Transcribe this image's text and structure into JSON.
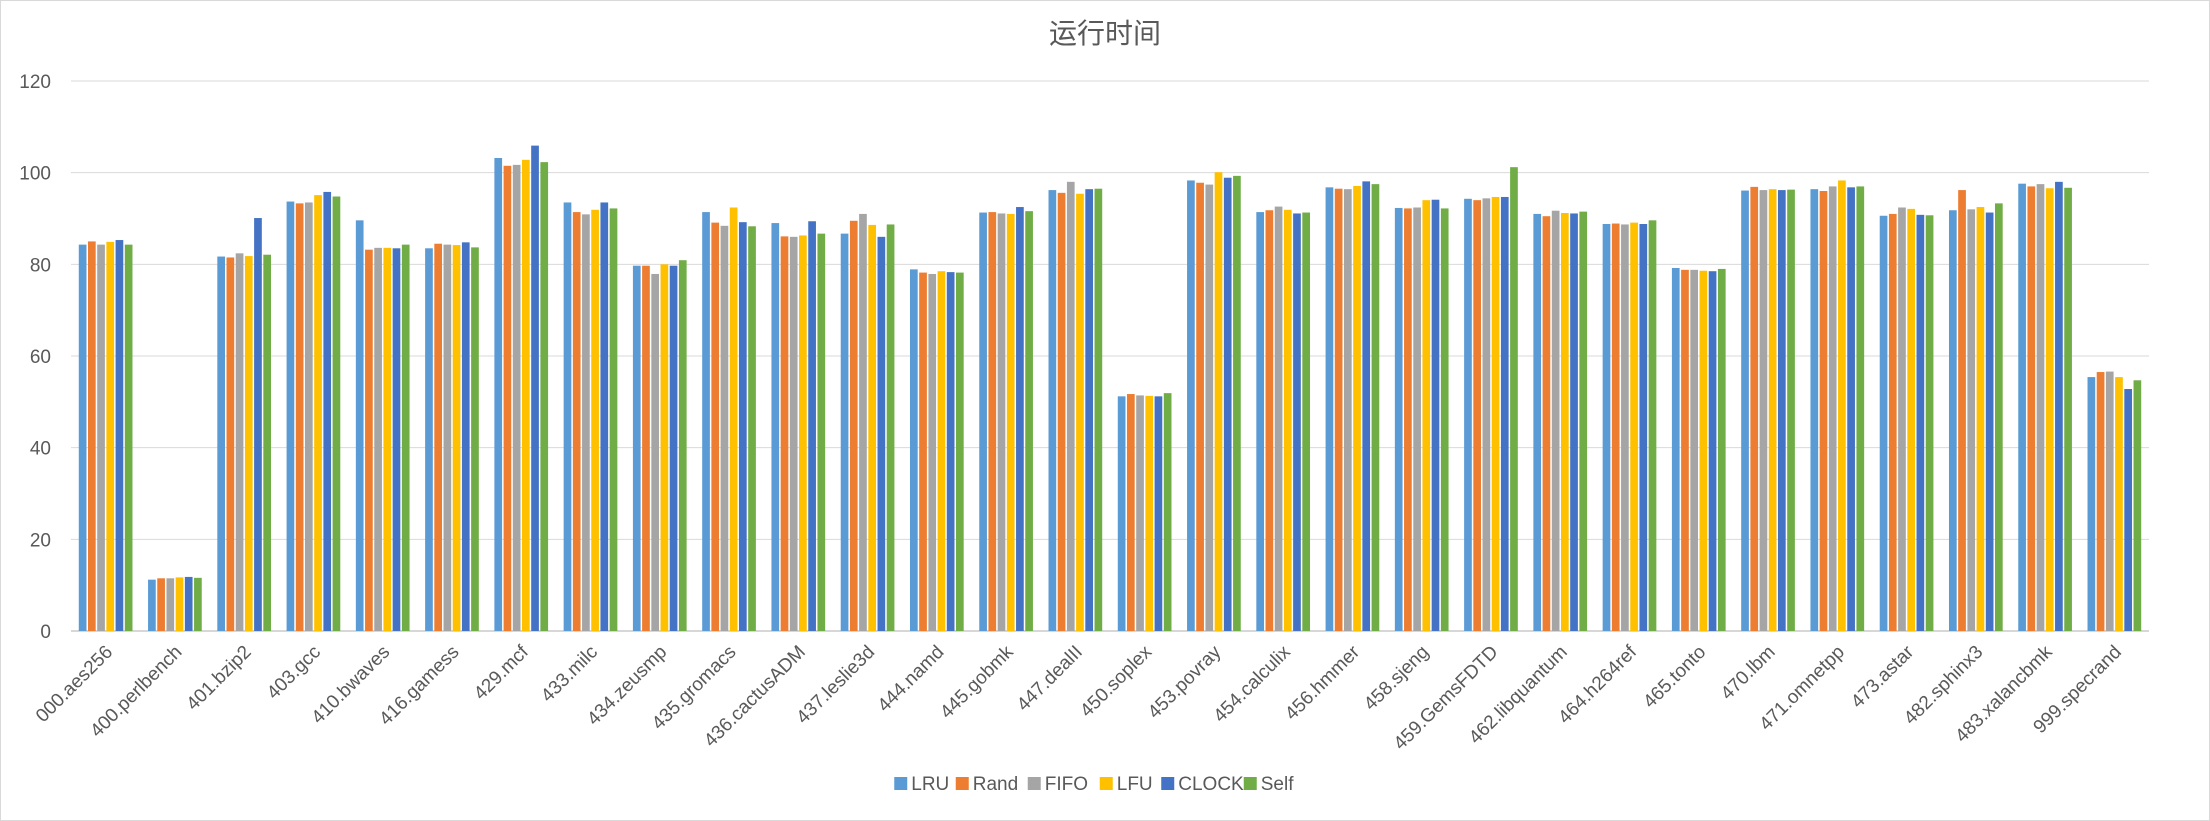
{
  "chart_data": {
    "type": "bar",
    "title": "运行时间",
    "xlabel": "",
    "ylabel": "",
    "ylim": [
      0,
      120
    ],
    "yticks": [
      0,
      20,
      40,
      60,
      80,
      100,
      120
    ],
    "grid": true,
    "legend_position": "bottom",
    "categories": [
      "000.aes256",
      "400.perlbench",
      "401.bzip2",
      "403.gcc",
      "410.bwaves",
      "416.gamess",
      "429.mcf",
      "433.milc",
      "434.zeusmp",
      "435.gromacs",
      "436.cactusADM",
      "437.leslie3d",
      "444.namd",
      "445.gobmk",
      "447.dealII",
      "450.soplex",
      "453.povray",
      "454.calculix",
      "456.hmmer",
      "458.sjeng",
      "459.GemsFDTD",
      "462.libquantum",
      "464.h264ref",
      "465.tonto",
      "470.lbm",
      "471.omnetpp",
      "473.astar",
      "482.sphinx3",
      "483.xalancbmk",
      "999.specrand"
    ],
    "series": [
      {
        "name": "LRU",
        "color": "#5b9bd5",
        "values": [
          84.3,
          11.2,
          81.7,
          93.7,
          89.6,
          83.5,
          103.2,
          93.5,
          79.7,
          91.4,
          89.0,
          86.7,
          78.9,
          91.3,
          96.2,
          51.2,
          98.3,
          91.4,
          96.8,
          92.3,
          94.3,
          91.0,
          88.8,
          79.2,
          96.1,
          96.4,
          90.6,
          91.8,
          97.6,
          55.4
        ]
      },
      {
        "name": "Rand",
        "color": "#ed7d31",
        "values": [
          85.0,
          11.5,
          81.5,
          93.3,
          83.2,
          84.5,
          101.5,
          91.4,
          79.7,
          89.1,
          86.1,
          89.5,
          78.2,
          91.4,
          95.6,
          51.7,
          97.8,
          91.8,
          96.5,
          92.2,
          94.0,
          90.5,
          88.9,
          78.8,
          96.9,
          96.0,
          91.0,
          96.2,
          97.0,
          56.5
        ]
      },
      {
        "name": "FIFO",
        "color": "#a5a5a5",
        "values": [
          84.3,
          11.5,
          82.4,
          93.5,
          83.6,
          84.3,
          101.7,
          90.9,
          77.9,
          88.4,
          86.0,
          91.0,
          77.9,
          91.1,
          98.0,
          51.4,
          97.4,
          92.6,
          96.4,
          92.4,
          94.4,
          91.7,
          88.7,
          78.8,
          96.2,
          97.0,
          92.4,
          92.0,
          97.5,
          56.6
        ]
      },
      {
        "name": "LFU",
        "color": "#ffc000",
        "values": [
          84.9,
          11.7,
          81.8,
          95.1,
          83.6,
          84.2,
          102.8,
          91.9,
          80.0,
          92.4,
          86.3,
          88.6,
          78.5,
          91.0,
          95.4,
          51.3,
          100.1,
          91.9,
          97.1,
          94.0,
          94.7,
          91.2,
          89.1,
          78.6,
          96.4,
          98.3,
          92.1,
          92.5,
          96.6,
          55.4
        ]
      },
      {
        "name": "CLOCK",
        "color": "#4472c4",
        "values": [
          85.3,
          11.8,
          90.1,
          95.8,
          83.5,
          84.8,
          105.9,
          93.5,
          79.7,
          89.2,
          89.4,
          86.0,
          78.3,
          92.5,
          96.4,
          51.2,
          98.9,
          91.1,
          98.1,
          94.1,
          94.7,
          91.1,
          88.8,
          78.5,
          96.2,
          96.8,
          90.8,
          91.3,
          98.0,
          52.8
        ]
      },
      {
        "name": "Self",
        "color": "#70ad47",
        "values": [
          84.3,
          11.6,
          82.1,
          94.8,
          84.3,
          83.7,
          102.3,
          92.2,
          80.9,
          88.3,
          86.7,
          88.7,
          78.2,
          91.6,
          96.5,
          51.9,
          99.3,
          91.3,
          97.5,
          92.2,
          101.2,
          91.5,
          89.6,
          79.0,
          96.3,
          97.0,
          90.7,
          93.3,
          96.7,
          54.7
        ]
      }
    ]
  }
}
